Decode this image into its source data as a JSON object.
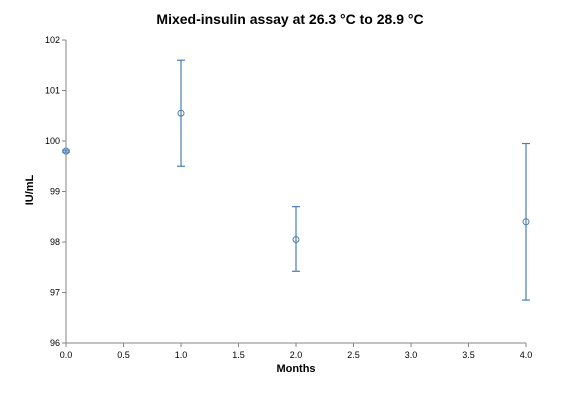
{
  "chart_data": {
    "type": "scatter",
    "title": "Mixed-insulin assay at 26.3 °C to 28.9 °C",
    "xlabel": "Months",
    "ylabel": "IU/mL",
    "xlim": [
      0,
      4
    ],
    "ylim": [
      96,
      102
    ],
    "x_ticks": [
      "0.0",
      "0.5",
      "1.0",
      "1.5",
      "2.0",
      "2.5",
      "3.0",
      "3.5",
      "4.0"
    ],
    "y_ticks": [
      "96",
      "97",
      "98",
      "99",
      "100",
      "101",
      "102"
    ],
    "grid": false,
    "legend": "none",
    "series_color": "#4a7eb0",
    "points": [
      {
        "x": 0,
        "y": 99.8,
        "err_low": 99.78,
        "err_high": 99.82
      },
      {
        "x": 1,
        "y": 100.55,
        "err_low": 99.5,
        "err_high": 101.6
      },
      {
        "x": 2,
        "y": 98.05,
        "err_low": 97.42,
        "err_high": 98.7
      },
      {
        "x": 4,
        "y": 98.4,
        "err_low": 96.85,
        "err_high": 99.95
      }
    ]
  }
}
